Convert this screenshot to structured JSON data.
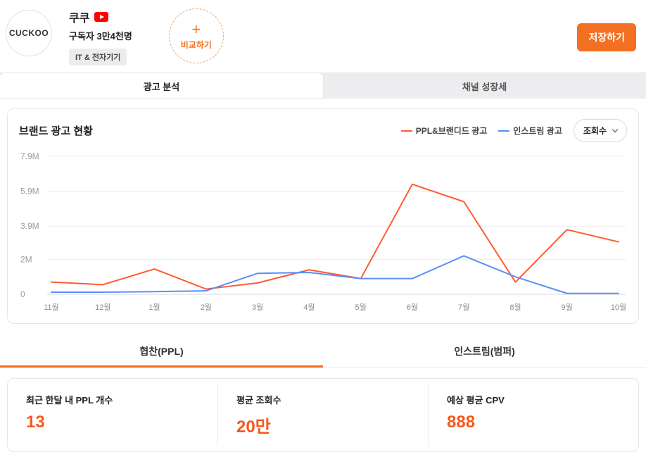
{
  "colors": {
    "accent_orange": "#f36f21",
    "value_orange": "#f4581c",
    "chart_orange": "#ff5b2e",
    "chart_blue": "#5b8ff9",
    "youtube_red": "#ff0000"
  },
  "header": {
    "logo_text": "CUCKOO",
    "channel_name": "쿠쿠",
    "subscribers": "구독자 3만4천명",
    "category_badge": "IT & 전자기기",
    "compare_plus": "+",
    "compare_label": "비교하기",
    "save_button": "저장하기"
  },
  "tabs": {
    "ad_analysis": "광고 분석",
    "channel_growth": "채널 성장세"
  },
  "chart_card": {
    "title": "브랜드 광고 현황",
    "metric_dropdown": "조회수",
    "legend": [
      {
        "label": "PPL&브랜디드 광고"
      },
      {
        "label": "인스트림 광고"
      }
    ]
  },
  "chart_data": {
    "type": "line",
    "title": "브랜드 광고 현황",
    "x": [
      "11월",
      "12월",
      "1월",
      "2월",
      "3월",
      "4월",
      "5월",
      "6월",
      "7월",
      "8월",
      "9월",
      "10월"
    ],
    "series": [
      {
        "name": "PPL&브랜디드 광고",
        "color": "#ff5b2e",
        "values": [
          0.7,
          0.55,
          1.45,
          0.3,
          0.65,
          1.4,
          0.9,
          6.3,
          5.3,
          0.7,
          3.7,
          3.0
        ]
      },
      {
        "name": "인스트림 광고",
        "color": "#5b8ff9",
        "values": [
          0.12,
          0.12,
          0.15,
          0.2,
          1.2,
          1.25,
          0.9,
          0.9,
          2.2,
          1.0,
          0.05,
          0.05
        ]
      }
    ],
    "unit": "M (views)",
    "ylim": [
      0,
      7.9
    ],
    "yticks": [
      {
        "label": "0",
        "value": 0
      },
      {
        "label": "2M",
        "value": 2
      },
      {
        "label": "3.9M",
        "value": 3.9
      },
      {
        "label": "5.9M",
        "value": 5.9
      },
      {
        "label": "7.9M",
        "value": 7.9
      }
    ],
    "legend_position": "top-right",
    "grid": true
  },
  "bottom_tabs": {
    "ppl": "협찬(PPL)",
    "instream": "인스트림(범퍼)"
  },
  "stats": [
    {
      "label": "최근 한달 내 PPL 개수",
      "value": "13"
    },
    {
      "label": "평균 조회수",
      "value": "20만"
    },
    {
      "label": "예상 평균 CPV",
      "value": "888"
    }
  ]
}
